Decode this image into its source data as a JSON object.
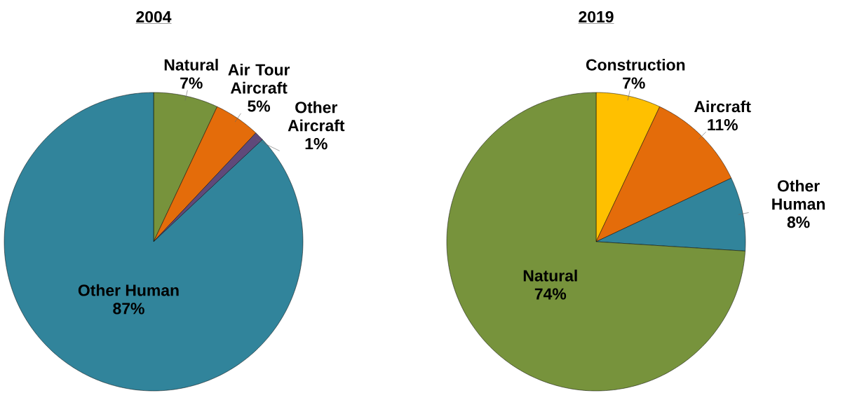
{
  "chart_data": [
    {
      "type": "pie",
      "title": "2004",
      "categories": [
        "Natural",
        "Air Tour Aircraft",
        "Other Aircraft",
        "Other Human"
      ],
      "values": [
        7,
        5,
        1,
        87
      ],
      "colors": [
        "#77933c",
        "#e46c0a",
        "#5f497a",
        "#31849b"
      ],
      "value_labels": [
        "7%",
        "5%",
        "1%",
        "87%"
      ]
    },
    {
      "type": "pie",
      "title": "2019",
      "categories": [
        "Construction",
        "Aircraft",
        "Other Human",
        "Natural"
      ],
      "values": [
        7,
        11,
        8,
        74
      ],
      "colors": [
        "#ffc000",
        "#e46c0a",
        "#31849b",
        "#77933c"
      ],
      "value_labels": [
        "7%",
        "11%",
        "8%",
        "74%"
      ]
    }
  ]
}
